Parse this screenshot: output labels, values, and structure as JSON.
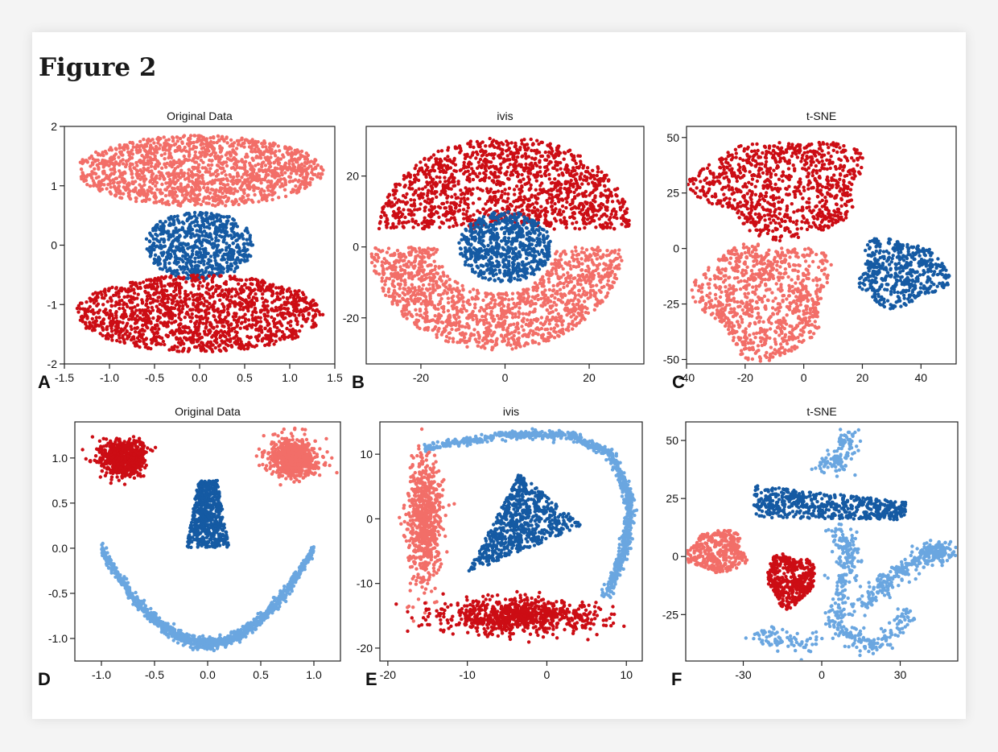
{
  "figure_title": "Figure 2",
  "colors": {
    "dark_red": "#cc0d14",
    "salmon": "#f26e68",
    "dark_blue": "#155aa3",
    "light_blue": "#6aa6e0"
  },
  "chart_data": [
    {
      "type": "scatter",
      "panel_label": "A",
      "title": "Original Data",
      "xlim": [
        -1.5,
        1.5
      ],
      "ylim": [
        -2,
        2
      ],
      "xticks": [
        -1.5,
        -1.0,
        -0.5,
        0.0,
        0.5,
        1.0,
        1.5
      ],
      "xtick_labels": [
        "-1.5",
        "-1.0",
        "-0.5",
        "0.0",
        "0.5",
        "1.0",
        "1.5"
      ],
      "yticks": [
        -2,
        -1,
        0,
        1,
        2
      ],
      "ytick_labels": [
        "-2",
        "-1",
        "0",
        "1",
        "2"
      ],
      "series": [
        {
          "color": "salmon",
          "shape": "ellipse",
          "center": [
            0.0,
            1.25
          ],
          "radius": [
            1.37,
            0.6
          ],
          "n": 1500
        },
        {
          "color": "dark_blue",
          "shape": "ellipse",
          "center": [
            0.0,
            0.0
          ],
          "radius": [
            0.6,
            0.58
          ],
          "n": 700
        },
        {
          "color": "dark_red",
          "shape": "ellipse",
          "center": [
            0.0,
            -1.15
          ],
          "radius": [
            1.37,
            0.65
          ],
          "n": 1500
        }
      ]
    },
    {
      "type": "scatter",
      "panel_label": "B",
      "title": "ivis",
      "xlim": [
        -33,
        33
      ],
      "ylim": [
        -33,
        34
      ],
      "xticks": [
        -20,
        0,
        20
      ],
      "xtick_labels": [
        "-20",
        "0",
        "20"
      ],
      "yticks": [
        -20,
        0,
        20
      ],
      "ytick_labels": [
        "-20",
        "0",
        "20"
      ],
      "series": [
        {
          "color": "dark_red",
          "shape": "arch_upper",
          "center": [
            0,
            5
          ],
          "radius": [
            30,
            26
          ],
          "inner": [
            13,
            12
          ],
          "n": 1400
        },
        {
          "color": "salmon",
          "shape": "arch_lower",
          "center": [
            -2,
            0
          ],
          "radius": [
            30,
            29
          ],
          "inner": [
            14,
            13
          ],
          "n": 1400
        },
        {
          "color": "dark_blue",
          "shape": "ellipse",
          "center": [
            0,
            0
          ],
          "radius": [
            11,
            10
          ],
          "n": 700
        }
      ]
    },
    {
      "type": "scatter",
      "panel_label": "C",
      "title": "t-SNE",
      "xlim": [
        -40,
        52
      ],
      "ylim": [
        -52,
        55
      ],
      "xticks": [
        -40,
        -20,
        0,
        20,
        40
      ],
      "xtick_labels": [
        "-40",
        "-20",
        "0",
        "20",
        "40"
      ],
      "yticks": [
        -50,
        -25,
        0,
        25,
        50
      ],
      "ytick_labels": [
        "-50",
        "-25",
        "0",
        "25",
        "50"
      ],
      "series": [
        {
          "color": "dark_red",
          "shape": "blob",
          "center": [
            -7,
            28
          ],
          "radius": [
            28,
            22
          ],
          "n": 900
        },
        {
          "color": "salmon",
          "shape": "blob",
          "center": [
            -13,
            -22
          ],
          "radius": [
            22,
            26
          ],
          "n": 900
        },
        {
          "color": "dark_blue",
          "shape": "blob",
          "center": [
            33,
            -11
          ],
          "radius": [
            15,
            15
          ],
          "n": 500
        }
      ]
    },
    {
      "type": "scatter",
      "panel_label": "D",
      "title": "Original Data",
      "xlim": [
        -1.25,
        1.25
      ],
      "ylim": [
        -1.25,
        1.4
      ],
      "xticks": [
        -1.0,
        -0.5,
        0.0,
        0.5,
        1.0
      ],
      "xtick_labels": [
        "-1.0",
        "-0.5",
        "0.0",
        "0.5",
        "1.0"
      ],
      "yticks": [
        -1.0,
        -0.5,
        0.0,
        0.5,
        1.0
      ],
      "ytick_labels": [
        "-1.0",
        "-0.5",
        "0.0",
        "0.5",
        "1.0"
      ],
      "series": [
        {
          "color": "dark_red",
          "shape": "gauss",
          "center": [
            -0.8,
            1.0
          ],
          "radius": [
            0.11,
            0.1
          ],
          "n": 700
        },
        {
          "color": "salmon",
          "shape": "gauss",
          "center": [
            0.8,
            1.0
          ],
          "radius": [
            0.11,
            0.1
          ],
          "n": 700
        },
        {
          "color": "dark_blue",
          "shape": "trapezoid",
          "center": [
            0.0,
            0.38
          ],
          "radius": [
            0.2,
            0.37
          ],
          "n": 600
        },
        {
          "color": "light_blue",
          "shape": "smile",
          "center": [
            0.0,
            0.0
          ],
          "radius": [
            1.0,
            1.0
          ],
          "n": 1100
        }
      ]
    },
    {
      "type": "scatter",
      "panel_label": "E",
      "title": "ivis",
      "xlim": [
        -21,
        12
      ],
      "ylim": [
        -22,
        15
      ],
      "xticks": [
        -20,
        -10,
        0,
        10
      ],
      "xtick_labels": [
        "-20",
        "-10",
        "0",
        "10"
      ],
      "yticks": [
        -20,
        -10,
        0,
        10
      ],
      "ytick_labels": [
        "-20",
        "-10",
        "0",
        "10"
      ],
      "series": [
        {
          "color": "salmon",
          "shape": "gauss",
          "center": [
            -15.5,
            0
          ],
          "radius": [
            1.0,
            5.0
          ],
          "n": 700
        },
        {
          "color": "dark_red",
          "shape": "gauss",
          "center": [
            -3.5,
            -15
          ],
          "radius": [
            5.0,
            1.3
          ],
          "n": 800
        },
        {
          "color": "dark_blue",
          "shape": "triangle",
          "center": [
            -3,
            0
          ],
          "radius": [
            7,
            8
          ],
          "n": 700
        },
        {
          "color": "light_blue",
          "shape": "curve_e",
          "center": [
            0,
            0
          ],
          "radius": [
            10,
            13
          ],
          "n": 900
        }
      ]
    },
    {
      "type": "scatter",
      "panel_label": "F",
      "title": "t-SNE",
      "xlim": [
        -52,
        52
      ],
      "ylim": [
        -45,
        58
      ],
      "xticks": [
        -30,
        0,
        30
      ],
      "xtick_labels": [
        "-30",
        "0",
        "30"
      ],
      "yticks": [
        -25,
        0,
        25,
        50
      ],
      "ytick_labels": [
        "-25",
        "0",
        "25",
        "50"
      ],
      "series": [
        {
          "color": "salmon",
          "shape": "blob",
          "center": [
            -40,
            2
          ],
          "radius": [
            11,
            9
          ],
          "n": 400
        },
        {
          "color": "dark_red",
          "shape": "blob",
          "center": [
            -12,
            -10
          ],
          "radius": [
            9,
            11
          ],
          "n": 450
        },
        {
          "color": "dark_blue",
          "shape": "wedge",
          "center": [
            0,
            22
          ],
          "radius": [
            26,
            8
          ],
          "n": 550
        },
        {
          "color": "light_blue",
          "shape": "curve_f",
          "center": [
            20,
            -10
          ],
          "radius": [
            20,
            25
          ],
          "n": 900
        }
      ]
    }
  ]
}
